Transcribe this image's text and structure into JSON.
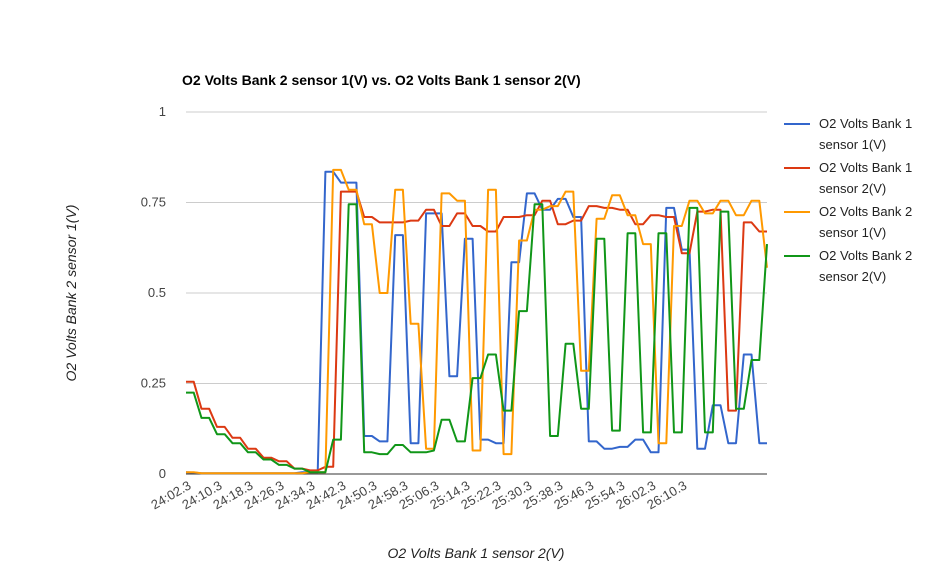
{
  "chart_data": {
    "type": "line",
    "title": "O2 Volts Bank 2 sensor 1(V) vs. O2 Volts Bank 1 sensor 2(V)",
    "xlabel": "O2 Volts Bank 1 sensor 2(V)",
    "ylabel": "O2 Volts Bank 2 sensor 1(V)",
    "ylim": [
      0,
      1
    ],
    "yticks": [
      0,
      0.25,
      0.5,
      0.75,
      1
    ],
    "ytick_labels": [
      "0",
      "0.25",
      "0.5",
      "0.75",
      "1"
    ],
    "grid": true,
    "legend_position": "right",
    "x_ticks": [
      {
        "i": 0,
        "label": "24:02.3"
      },
      {
        "i": 4,
        "label": "24:10.3"
      },
      {
        "i": 8,
        "label": "24:18.3"
      },
      {
        "i": 12,
        "label": "24:26.3"
      },
      {
        "i": 16,
        "label": "24:34.3"
      },
      {
        "i": 20,
        "label": "24:42.3"
      },
      {
        "i": 24,
        "label": "24:50.3"
      },
      {
        "i": 28,
        "label": "24:58.3"
      },
      {
        "i": 32,
        "label": "25:06.3"
      },
      {
        "i": 36,
        "label": "25:14.3"
      },
      {
        "i": 40,
        "label": "25:22.3"
      },
      {
        "i": 44,
        "label": "25:30.3"
      },
      {
        "i": 48,
        "label": "25:38.3"
      },
      {
        "i": 52,
        "label": "25:46.3"
      },
      {
        "i": 56,
        "label": "25:54.3"
      },
      {
        "i": 60,
        "label": "26:02.3"
      },
      {
        "i": 64,
        "label": "26:10.3"
      }
    ],
    "series": [
      {
        "name": "O2 Volts Bank 1 sensor 1(V)",
        "color": "#3366cc",
        "values": [
          0.005,
          0.004,
          0.002,
          0.002,
          0.002,
          0.002,
          0.002,
          0.002,
          0.002,
          0.002,
          0.002,
          0.002,
          0.002,
          0.002,
          0.002,
          0.005,
          0.005,
          0.005,
          0.835,
          0.835,
          0.805,
          0.805,
          0.805,
          0.105,
          0.105,
          0.09,
          0.09,
          0.66,
          0.66,
          0.085,
          0.085,
          0.72,
          0.72,
          0.72,
          0.27,
          0.27,
          0.65,
          0.65,
          0.095,
          0.095,
          0.085,
          0.085,
          0.585,
          0.585,
          0.775,
          0.775,
          0.73,
          0.73,
          0.76,
          0.76,
          0.71,
          0.71,
          0.09,
          0.09,
          0.07,
          0.07,
          0.075,
          0.075,
          0.095,
          0.095,
          0.06,
          0.06,
          0.735,
          0.735,
          0.62,
          0.62,
          0.07,
          0.07,
          0.19,
          0.19,
          0.085,
          0.085,
          0.33,
          0.33,
          0.085,
          0.085
        ]
      },
      {
        "name": "O2 Volts Bank 1 sensor 2(V)",
        "color": "#dc3912",
        "values": [
          0.255,
          0.255,
          0.18,
          0.18,
          0.13,
          0.13,
          0.1,
          0.1,
          0.07,
          0.07,
          0.045,
          0.045,
          0.035,
          0.035,
          0.015,
          0.015,
          0.01,
          0.01,
          0.02,
          0.02,
          0.78,
          0.78,
          0.78,
          0.71,
          0.71,
          0.695,
          0.695,
          0.695,
          0.695,
          0.7,
          0.7,
          0.73,
          0.73,
          0.685,
          0.685,
          0.72,
          0.72,
          0.685,
          0.685,
          0.67,
          0.67,
          0.71,
          0.71,
          0.71,
          0.715,
          0.715,
          0.755,
          0.755,
          0.69,
          0.69,
          0.7,
          0.7,
          0.74,
          0.74,
          0.735,
          0.735,
          0.73,
          0.73,
          0.69,
          0.69,
          0.715,
          0.715,
          0.71,
          0.71,
          0.61,
          0.61,
          0.725,
          0.725,
          0.73,
          0.73,
          0.175,
          0.175,
          0.695,
          0.695,
          0.67,
          0.67
        ]
      },
      {
        "name": "O2 Volts Bank 2 sensor 1(V)",
        "color": "#ff9900",
        "values": [
          0.005,
          0.005,
          0.002,
          0.002,
          0.002,
          0.002,
          0.002,
          0.002,
          0.002,
          0.002,
          0.002,
          0.002,
          0.002,
          0.002,
          0.002,
          0.002,
          0.005,
          0.005,
          0.005,
          0.84,
          0.84,
          0.785,
          0.785,
          0.69,
          0.69,
          0.5,
          0.5,
          0.785,
          0.785,
          0.415,
          0.415,
          0.07,
          0.07,
          0.775,
          0.775,
          0.755,
          0.755,
          0.065,
          0.065,
          0.785,
          0.785,
          0.055,
          0.055,
          0.645,
          0.645,
          0.73,
          0.73,
          0.74,
          0.74,
          0.78,
          0.78,
          0.285,
          0.285,
          0.705,
          0.705,
          0.77,
          0.77,
          0.715,
          0.715,
          0.635,
          0.635,
          0.085,
          0.085,
          0.685,
          0.685,
          0.755,
          0.755,
          0.72,
          0.72,
          0.755,
          0.755,
          0.715,
          0.715,
          0.755,
          0.755,
          0.57
        ]
      },
      {
        "name": "O2 Volts Bank 2 sensor 2(V)",
        "color": "#109618",
        "values": [
          0.225,
          0.225,
          0.155,
          0.155,
          0.11,
          0.11,
          0.085,
          0.085,
          0.06,
          0.06,
          0.04,
          0.04,
          0.025,
          0.025,
          0.015,
          0.015,
          0.005,
          0.005,
          0.005,
          0.095,
          0.095,
          0.745,
          0.745,
          0.06,
          0.06,
          0.055,
          0.055,
          0.08,
          0.08,
          0.06,
          0.06,
          0.06,
          0.065,
          0.15,
          0.15,
          0.09,
          0.09,
          0.265,
          0.265,
          0.33,
          0.33,
          0.175,
          0.175,
          0.45,
          0.45,
          0.745,
          0.745,
          0.105,
          0.105,
          0.36,
          0.36,
          0.18,
          0.18,
          0.65,
          0.65,
          0.12,
          0.12,
          0.665,
          0.665,
          0.115,
          0.115,
          0.665,
          0.665,
          0.115,
          0.115,
          0.735,
          0.735,
          0.115,
          0.115,
          0.725,
          0.725,
          0.18,
          0.18,
          0.315,
          0.315,
          0.635
        ]
      }
    ]
  }
}
